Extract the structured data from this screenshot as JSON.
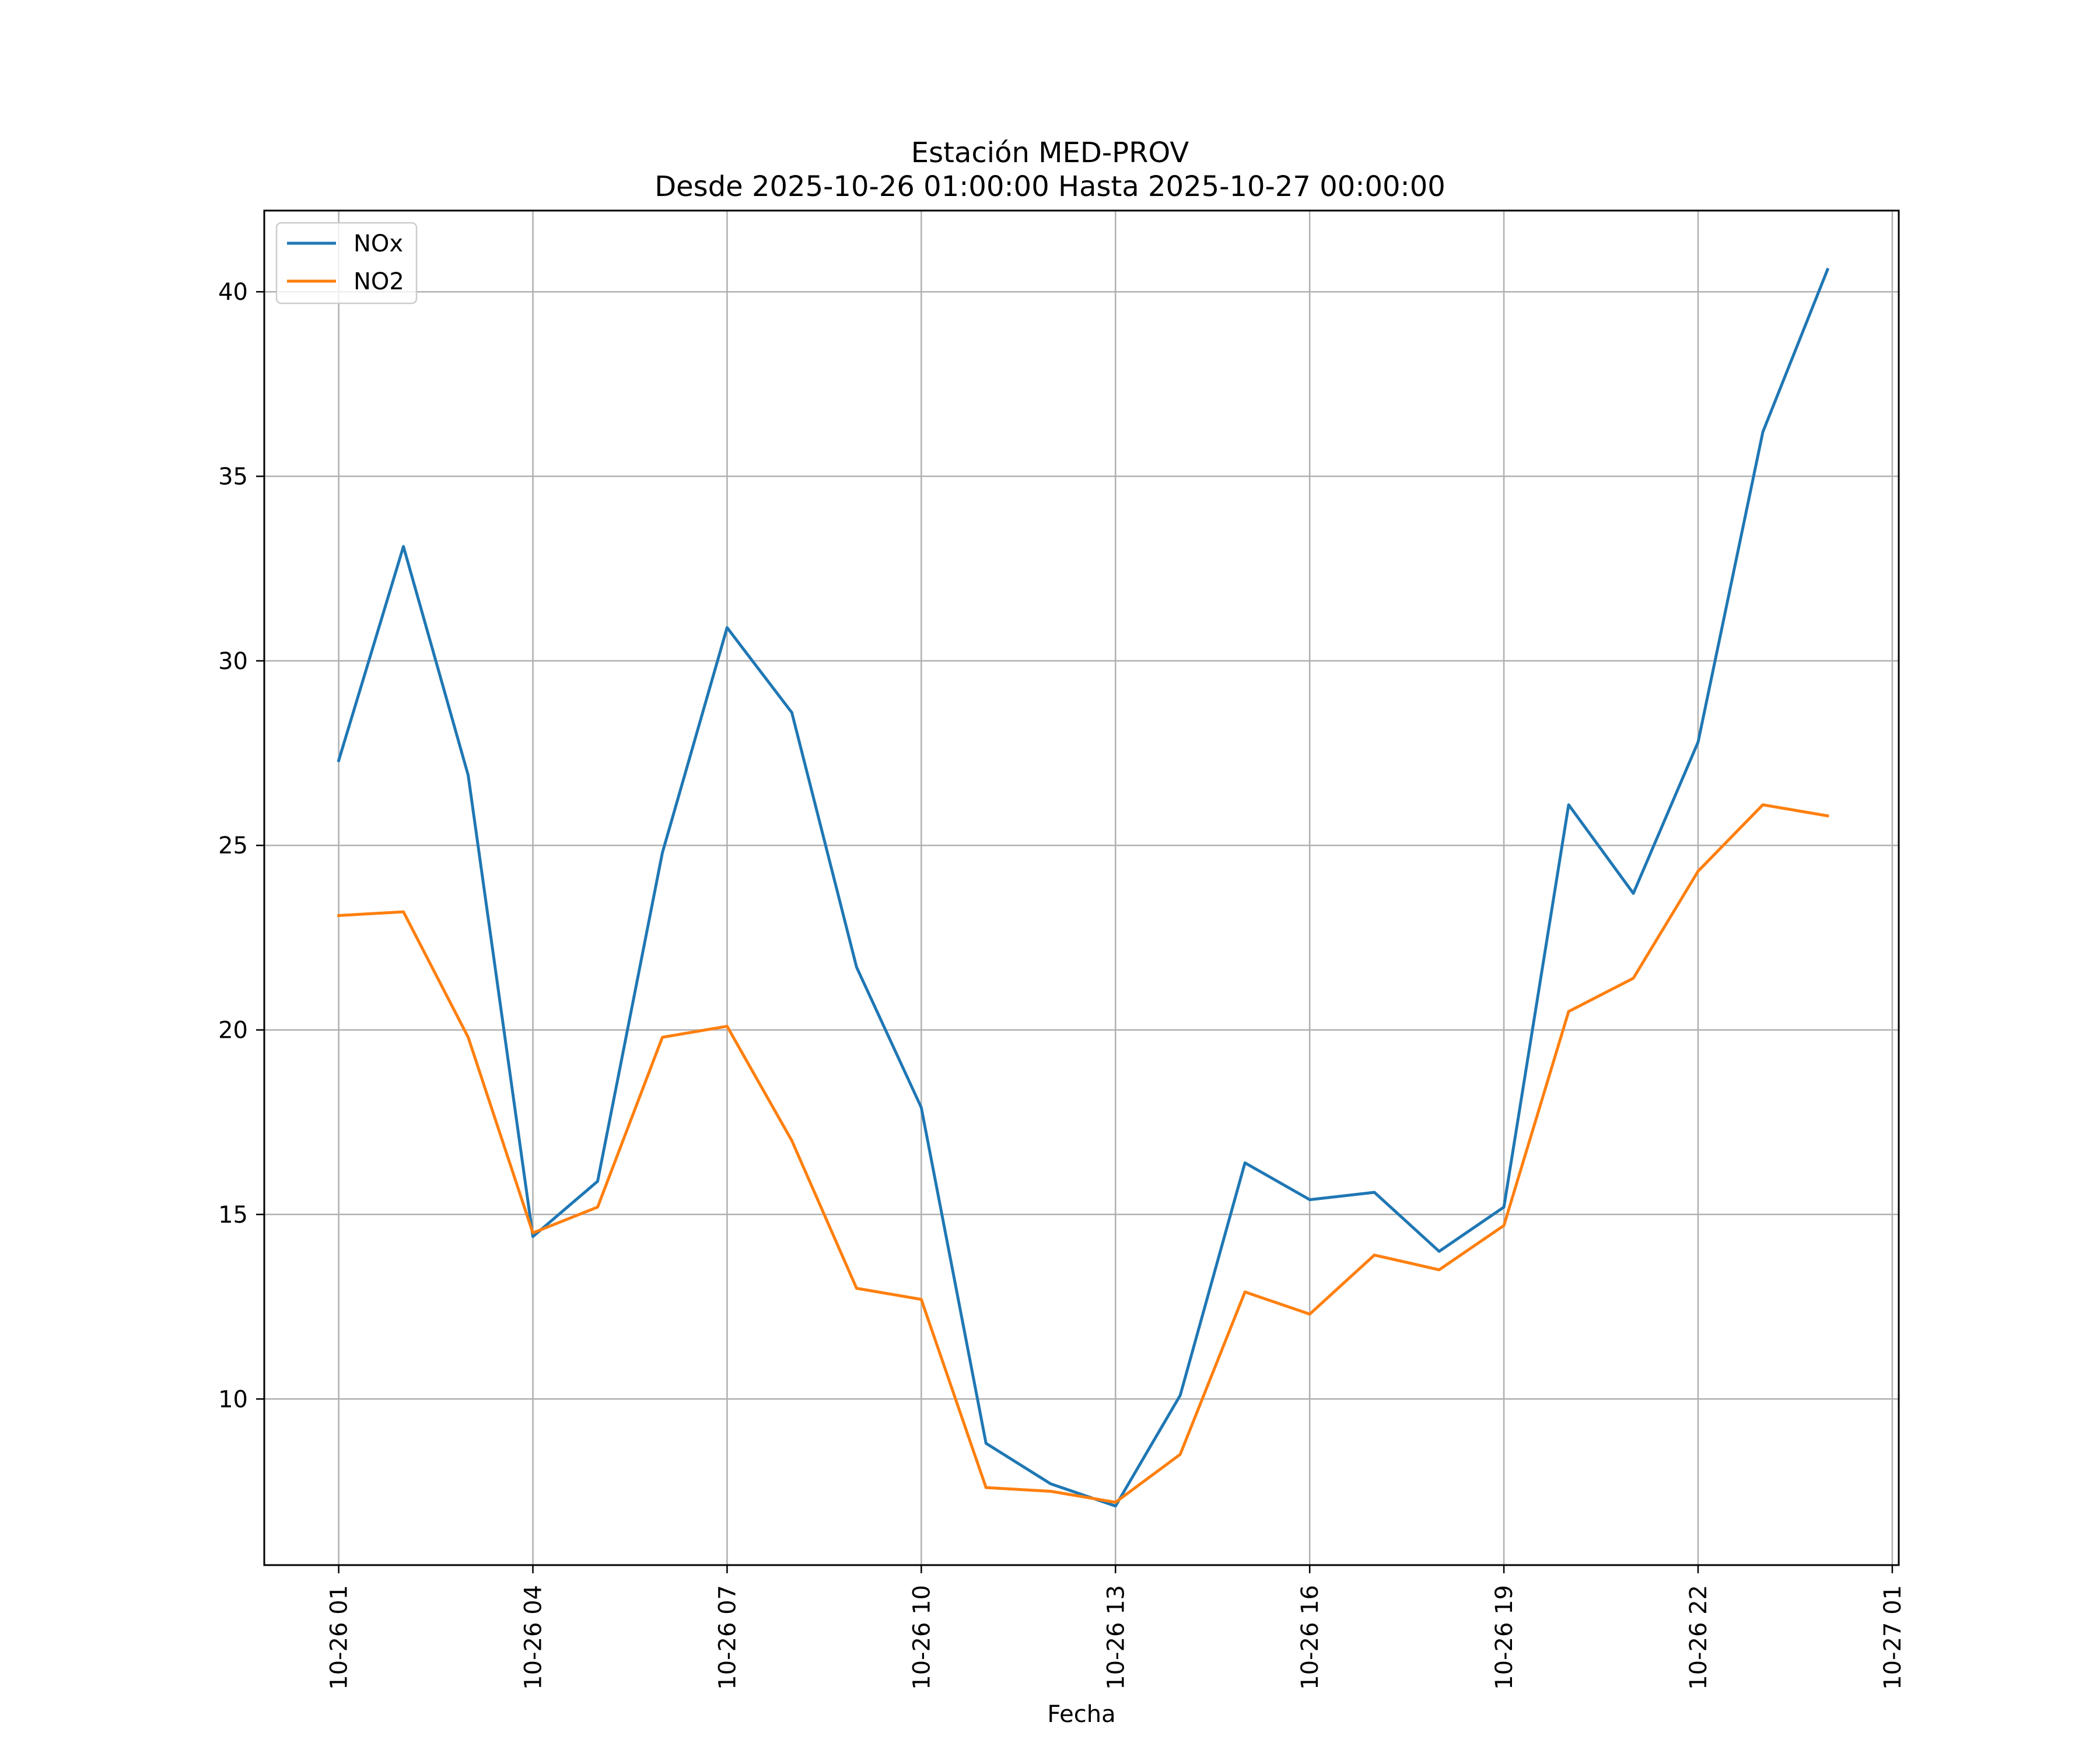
{
  "chart_data": {
    "type": "line",
    "title_line1": "Estación MED-PROV",
    "title_line2": "Desde 2025-10-26 01:00:00 Hasta 2025-10-27 00:00:00",
    "xlabel": "Fecha",
    "ylabel": "",
    "x": [
      "10-26 01",
      "10-26 02",
      "10-26 03",
      "10-26 04",
      "10-26 05",
      "10-26 06",
      "10-26 07",
      "10-26 08",
      "10-26 09",
      "10-26 10",
      "10-26 11",
      "10-26 12",
      "10-26 13",
      "10-26 14",
      "10-26 15",
      "10-26 16",
      "10-26 17",
      "10-26 18",
      "10-26 19",
      "10-26 20",
      "10-26 21",
      "10-26 22",
      "10-26 23",
      "10-27 00"
    ],
    "x_hours": [
      1,
      2,
      3,
      4,
      5,
      6,
      7,
      8,
      9,
      10,
      11,
      12,
      13,
      14,
      15,
      16,
      17,
      18,
      19,
      20,
      21,
      22,
      23,
      24
    ],
    "xlim_hours": [
      -0.15,
      25.1
    ],
    "ylim": [
      5.5,
      42.2
    ],
    "xticks": [
      {
        "hour": 1,
        "label": "10-26 01"
      },
      {
        "hour": 4,
        "label": "10-26 04"
      },
      {
        "hour": 7,
        "label": "10-26 07"
      },
      {
        "hour": 10,
        "label": "10-26 10"
      },
      {
        "hour": 13,
        "label": "10-26 13"
      },
      {
        "hour": 16,
        "label": "10-26 16"
      },
      {
        "hour": 19,
        "label": "10-26 19"
      },
      {
        "hour": 22,
        "label": "10-26 22"
      },
      {
        "hour": 25,
        "label": "10-27 01"
      }
    ],
    "yticks": [
      10,
      15,
      20,
      25,
      30,
      35,
      40
    ],
    "grid": true,
    "legend_position": "top-left",
    "series": [
      {
        "name": "NOx",
        "color": "#1f77b4",
        "values": [
          27.3,
          33.1,
          26.9,
          14.4,
          15.9,
          24.8,
          30.9,
          28.6,
          21.7,
          17.9,
          8.8,
          7.7,
          7.1,
          10.1,
          16.4,
          15.4,
          15.6,
          14.0,
          15.2,
          26.1,
          23.7,
          27.8,
          36.2,
          40.6
        ]
      },
      {
        "name": "NO2",
        "color": "#ff7f0e",
        "values": [
          23.1,
          23.2,
          19.8,
          14.5,
          15.2,
          19.8,
          20.1,
          17.0,
          13.0,
          12.7,
          7.6,
          7.5,
          7.2,
          8.5,
          12.9,
          12.3,
          13.9,
          13.5,
          14.7,
          20.5,
          21.4,
          24.3,
          26.1,
          25.8
        ]
      }
    ]
  }
}
